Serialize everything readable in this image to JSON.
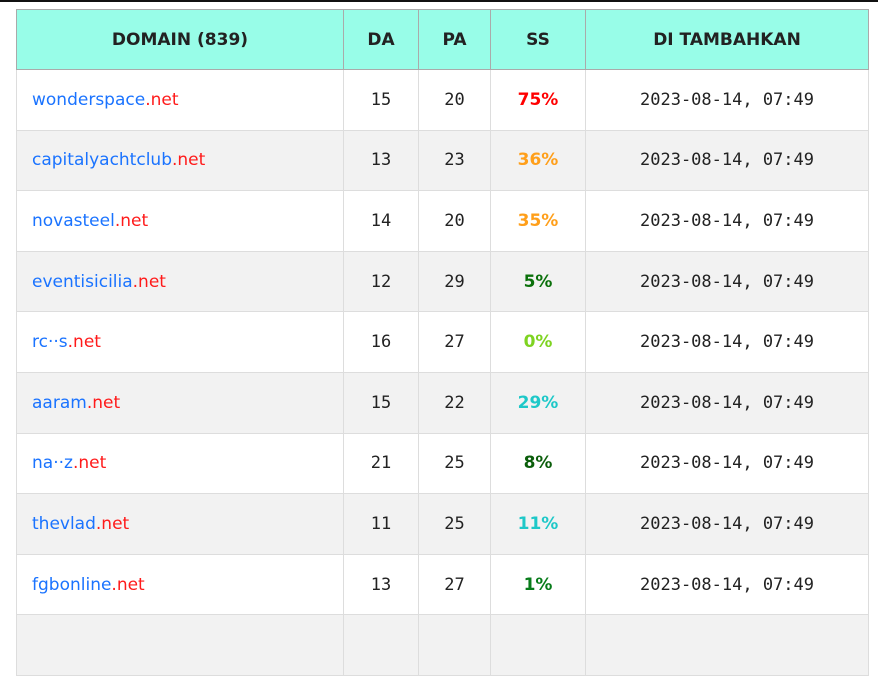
{
  "table": {
    "headers": [
      "DOMAIN (839)",
      "DA",
      "PA",
      "SS",
      "DI TAMBAHKAN"
    ],
    "rows": [
      {
        "name": "wonderspace",
        "tld": ".net",
        "da": "15",
        "pa": "20",
        "ss": "75%",
        "ss_color": "#ff0000",
        "added": "2023-08-14, 07:49"
      },
      {
        "name": "capitalyachtclub",
        "tld": ".net",
        "da": "13",
        "pa": "23",
        "ss": "36%",
        "ss_color": "#ff9f1a",
        "added": "2023-08-14, 07:49"
      },
      {
        "name": "novasteel",
        "tld": ".net",
        "da": "14",
        "pa": "20",
        "ss": "35%",
        "ss_color": "#ff9f1a",
        "added": "2023-08-14, 07:49"
      },
      {
        "name": "eventisicilia",
        "tld": ".net",
        "da": "12",
        "pa": "29",
        "ss": "5%",
        "ss_color": "#0a700a",
        "added": "2023-08-14, 07:49"
      },
      {
        "name": "rc··s",
        "tld": ".net",
        "da": "16",
        "pa": "27",
        "ss": "0%",
        "ss_color": "#7ed321",
        "added": "2023-08-14, 07:49"
      },
      {
        "name": "aaram",
        "tld": ".net",
        "da": "15",
        "pa": "22",
        "ss": "29%",
        "ss_color": "#1ec8c8",
        "added": "2023-08-14, 07:49"
      },
      {
        "name": "na··z",
        "tld": ".net",
        "da": "21",
        "pa": "25",
        "ss": "8%",
        "ss_color": "#0b5e0b",
        "added": "2023-08-14, 07:49"
      },
      {
        "name": "thevlad",
        "tld": ".net",
        "da": "11",
        "pa": "25",
        "ss": "11%",
        "ss_color": "#1ec8c8",
        "added": "2023-08-14, 07:49"
      },
      {
        "name": "fgbonline",
        "tld": ".net",
        "da": "13",
        "pa": "27",
        "ss": "1%",
        "ss_color": "#087c1a",
        "added": "2023-08-14, 07:49"
      }
    ]
  }
}
